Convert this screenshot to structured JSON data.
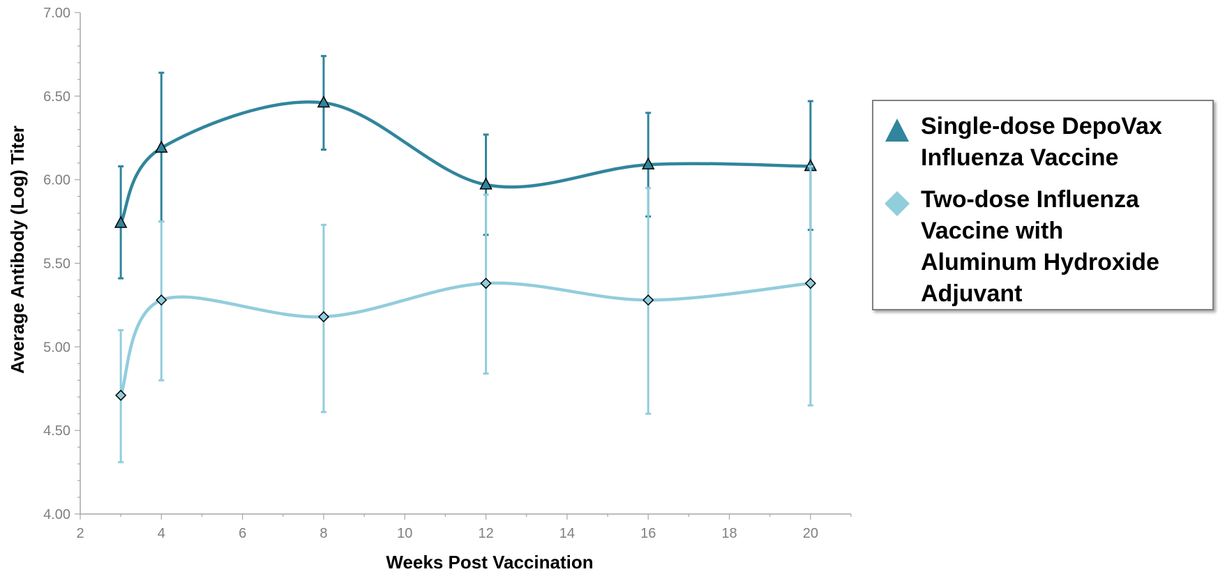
{
  "chart_data": {
    "type": "line",
    "xlabel": "Weeks Post Vaccination",
    "ylabel": "Average Antibody (Log) Titer",
    "xlim": [
      2,
      21
    ],
    "ylim": [
      4.0,
      7.0
    ],
    "x_ticks": [
      "2",
      "4",
      "6",
      "8",
      "10",
      "12",
      "14",
      "16",
      "18",
      "20"
    ],
    "y_ticks": [
      "4.00",
      "4.50",
      "5.00",
      "5.50",
      "6.00",
      "6.50",
      "7.00"
    ],
    "grid": false,
    "legend_position": "right",
    "series": [
      {
        "name": "Single-dose DepoVax Influenza Vaccine",
        "marker": "triangle",
        "color": "#31859c",
        "x": [
          3,
          4,
          8,
          12,
          16,
          20
        ],
        "y": [
          5.74,
          6.19,
          6.46,
          5.97,
          6.09,
          6.08
        ],
        "error_low": [
          5.41,
          5.75,
          6.18,
          5.67,
          5.78,
          5.7
        ],
        "error_high": [
          6.08,
          6.64,
          6.74,
          6.27,
          6.4,
          6.47
        ]
      },
      {
        "name": "Two-dose Influenza Vaccine with Aluminum Hydroxide Adjuvant",
        "marker": "diamond",
        "color": "#92cddc",
        "x": [
          3,
          4,
          8,
          12,
          16,
          20
        ],
        "y": [
          4.71,
          5.28,
          5.18,
          5.38,
          5.28,
          5.38
        ],
        "error_low": [
          4.31,
          4.8,
          4.61,
          4.84,
          4.6,
          4.65
        ],
        "error_high": [
          5.1,
          5.75,
          5.73,
          5.91,
          5.95,
          6.08
        ]
      }
    ]
  },
  "legend": {
    "items": [
      {
        "label_lines": [
          "Single-dose DepoVax",
          "Influenza Vaccine"
        ]
      },
      {
        "label_lines": [
          "Two-dose Influenza",
          "Vaccine with",
          "Aluminum Hydroxide",
          "Adjuvant"
        ]
      }
    ]
  }
}
